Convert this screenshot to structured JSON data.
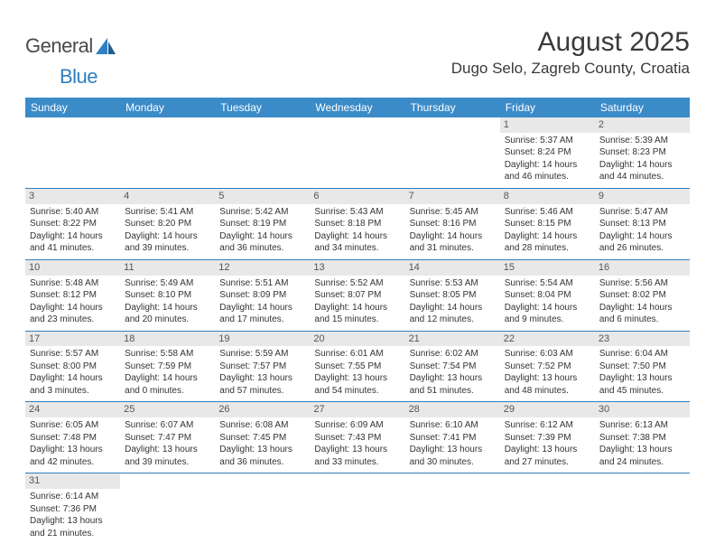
{
  "logo": {
    "text1": "General",
    "text2": "Blue"
  },
  "header": {
    "month_title": "August 2025",
    "location": "Dugo Selo, Zagreb County, Croatia"
  },
  "colors": {
    "header_bg": "#3b8bc9",
    "header_text": "#ffffff",
    "row_divider": "#2f7fc2",
    "daynum_bg": "#e8e8e8",
    "logo_blue": "#2f7fc2",
    "logo_gray": "#4a4a4a",
    "body_text": "#333333"
  },
  "weekdays": [
    "Sunday",
    "Monday",
    "Tuesday",
    "Wednesday",
    "Thursday",
    "Friday",
    "Saturday"
  ],
  "days": [
    {
      "n": "",
      "sunrise": "",
      "sunset": "",
      "daylight": ""
    },
    {
      "n": "",
      "sunrise": "",
      "sunset": "",
      "daylight": ""
    },
    {
      "n": "",
      "sunrise": "",
      "sunset": "",
      "daylight": ""
    },
    {
      "n": "",
      "sunrise": "",
      "sunset": "",
      "daylight": ""
    },
    {
      "n": "",
      "sunrise": "",
      "sunset": "",
      "daylight": ""
    },
    {
      "n": "1",
      "sunrise": "5:37 AM",
      "sunset": "8:24 PM",
      "daylight": "14 hours and 46 minutes."
    },
    {
      "n": "2",
      "sunrise": "5:39 AM",
      "sunset": "8:23 PM",
      "daylight": "14 hours and 44 minutes."
    },
    {
      "n": "3",
      "sunrise": "5:40 AM",
      "sunset": "8:22 PM",
      "daylight": "14 hours and 41 minutes."
    },
    {
      "n": "4",
      "sunrise": "5:41 AM",
      "sunset": "8:20 PM",
      "daylight": "14 hours and 39 minutes."
    },
    {
      "n": "5",
      "sunrise": "5:42 AM",
      "sunset": "8:19 PM",
      "daylight": "14 hours and 36 minutes."
    },
    {
      "n": "6",
      "sunrise": "5:43 AM",
      "sunset": "8:18 PM",
      "daylight": "14 hours and 34 minutes."
    },
    {
      "n": "7",
      "sunrise": "5:45 AM",
      "sunset": "8:16 PM",
      "daylight": "14 hours and 31 minutes."
    },
    {
      "n": "8",
      "sunrise": "5:46 AM",
      "sunset": "8:15 PM",
      "daylight": "14 hours and 28 minutes."
    },
    {
      "n": "9",
      "sunrise": "5:47 AM",
      "sunset": "8:13 PM",
      "daylight": "14 hours and 26 minutes."
    },
    {
      "n": "10",
      "sunrise": "5:48 AM",
      "sunset": "8:12 PM",
      "daylight": "14 hours and 23 minutes."
    },
    {
      "n": "11",
      "sunrise": "5:49 AM",
      "sunset": "8:10 PM",
      "daylight": "14 hours and 20 minutes."
    },
    {
      "n": "12",
      "sunrise": "5:51 AM",
      "sunset": "8:09 PM",
      "daylight": "14 hours and 17 minutes."
    },
    {
      "n": "13",
      "sunrise": "5:52 AM",
      "sunset": "8:07 PM",
      "daylight": "14 hours and 15 minutes."
    },
    {
      "n": "14",
      "sunrise": "5:53 AM",
      "sunset": "8:05 PM",
      "daylight": "14 hours and 12 minutes."
    },
    {
      "n": "15",
      "sunrise": "5:54 AM",
      "sunset": "8:04 PM",
      "daylight": "14 hours and 9 minutes."
    },
    {
      "n": "16",
      "sunrise": "5:56 AM",
      "sunset": "8:02 PM",
      "daylight": "14 hours and 6 minutes."
    },
    {
      "n": "17",
      "sunrise": "5:57 AM",
      "sunset": "8:00 PM",
      "daylight": "14 hours and 3 minutes."
    },
    {
      "n": "18",
      "sunrise": "5:58 AM",
      "sunset": "7:59 PM",
      "daylight": "14 hours and 0 minutes."
    },
    {
      "n": "19",
      "sunrise": "5:59 AM",
      "sunset": "7:57 PM",
      "daylight": "13 hours and 57 minutes."
    },
    {
      "n": "20",
      "sunrise": "6:01 AM",
      "sunset": "7:55 PM",
      "daylight": "13 hours and 54 minutes."
    },
    {
      "n": "21",
      "sunrise": "6:02 AM",
      "sunset": "7:54 PM",
      "daylight": "13 hours and 51 minutes."
    },
    {
      "n": "22",
      "sunrise": "6:03 AM",
      "sunset": "7:52 PM",
      "daylight": "13 hours and 48 minutes."
    },
    {
      "n": "23",
      "sunrise": "6:04 AM",
      "sunset": "7:50 PM",
      "daylight": "13 hours and 45 minutes."
    },
    {
      "n": "24",
      "sunrise": "6:05 AM",
      "sunset": "7:48 PM",
      "daylight": "13 hours and 42 minutes."
    },
    {
      "n": "25",
      "sunrise": "6:07 AM",
      "sunset": "7:47 PM",
      "daylight": "13 hours and 39 minutes."
    },
    {
      "n": "26",
      "sunrise": "6:08 AM",
      "sunset": "7:45 PM",
      "daylight": "13 hours and 36 minutes."
    },
    {
      "n": "27",
      "sunrise": "6:09 AM",
      "sunset": "7:43 PM",
      "daylight": "13 hours and 33 minutes."
    },
    {
      "n": "28",
      "sunrise": "6:10 AM",
      "sunset": "7:41 PM",
      "daylight": "13 hours and 30 minutes."
    },
    {
      "n": "29",
      "sunrise": "6:12 AM",
      "sunset": "7:39 PM",
      "daylight": "13 hours and 27 minutes."
    },
    {
      "n": "30",
      "sunrise": "6:13 AM",
      "sunset": "7:38 PM",
      "daylight": "13 hours and 24 minutes."
    },
    {
      "n": "31",
      "sunrise": "6:14 AM",
      "sunset": "7:36 PM",
      "daylight": "13 hours and 21 minutes."
    },
    {
      "n": "",
      "sunrise": "",
      "sunset": "",
      "daylight": ""
    },
    {
      "n": "",
      "sunrise": "",
      "sunset": "",
      "daylight": ""
    },
    {
      "n": "",
      "sunrise": "",
      "sunset": "",
      "daylight": ""
    },
    {
      "n": "",
      "sunrise": "",
      "sunset": "",
      "daylight": ""
    },
    {
      "n": "",
      "sunrise": "",
      "sunset": "",
      "daylight": ""
    },
    {
      "n": "",
      "sunrise": "",
      "sunset": "",
      "daylight": ""
    }
  ],
  "labels": {
    "sunrise": "Sunrise:",
    "sunset": "Sunset:",
    "daylight": "Daylight:"
  }
}
